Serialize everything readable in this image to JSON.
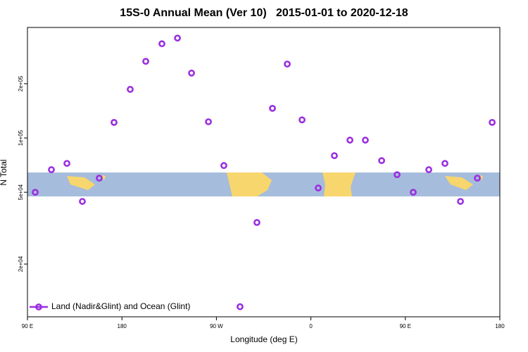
{
  "chart_data": {
    "type": "scatter",
    "title": "15S-0 Annual Mean (Ver 10)   2015-01-01 to 2020-12-18",
    "x_label": "Longitude (deg E)",
    "y_label": "N Total",
    "yscale": "log",
    "legend": "lower left",
    "xlim": [
      90,
      540
    ],
    "xticks": [
      {
        "value": 90,
        "label": "90 E"
      },
      {
        "value": 180,
        "label": "180"
      },
      {
        "value": 270,
        "label": "90 W"
      },
      {
        "value": 360,
        "label": "0"
      },
      {
        "value": 450,
        "label": "90 E"
      },
      {
        "value": 540,
        "label": "180"
      }
    ],
    "ylim": [
      10200,
      410000
    ],
    "yticks": [
      {
        "value": 20000,
        "label": "2e+04"
      },
      {
        "value": 50000,
        "label": "5e+04"
      },
      {
        "value": 100000,
        "label": "1e+05"
      },
      {
        "value": 200000,
        "label": "2e+05"
      }
    ],
    "x": [
      97.4,
      112.8,
      127.6,
      142.3,
      158.4,
      172.5,
      187.9,
      202.7,
      218.1,
      232.9,
      246.3,
      262.4,
      277.1,
      292.5,
      308.6,
      323.4,
      337.5,
      351.6,
      367.0,
      382.4,
      397.2,
      411.9,
      427.4,
      442.1,
      457.5,
      472.3,
      487.7,
      502.5,
      518.6,
      532.7
    ],
    "series": [
      {
        "name": "Land (Nadir&Glint) and Ocean (Glint)",
        "color": "#9b2fe0",
        "values": [
          50000,
          66700,
          72300,
          44500,
          59900,
          122000,
          186000,
          266000,
          333000,
          358000,
          229000,
          123000,
          70300,
          11600,
          34000,
          146000,
          257000,
          126000,
          52800,
          79800,
          97300,
          97300,
          74900,
          62600,
          50000,
          66700,
          72300,
          44500,
          59900,
          122000
        ]
      }
    ]
  }
}
